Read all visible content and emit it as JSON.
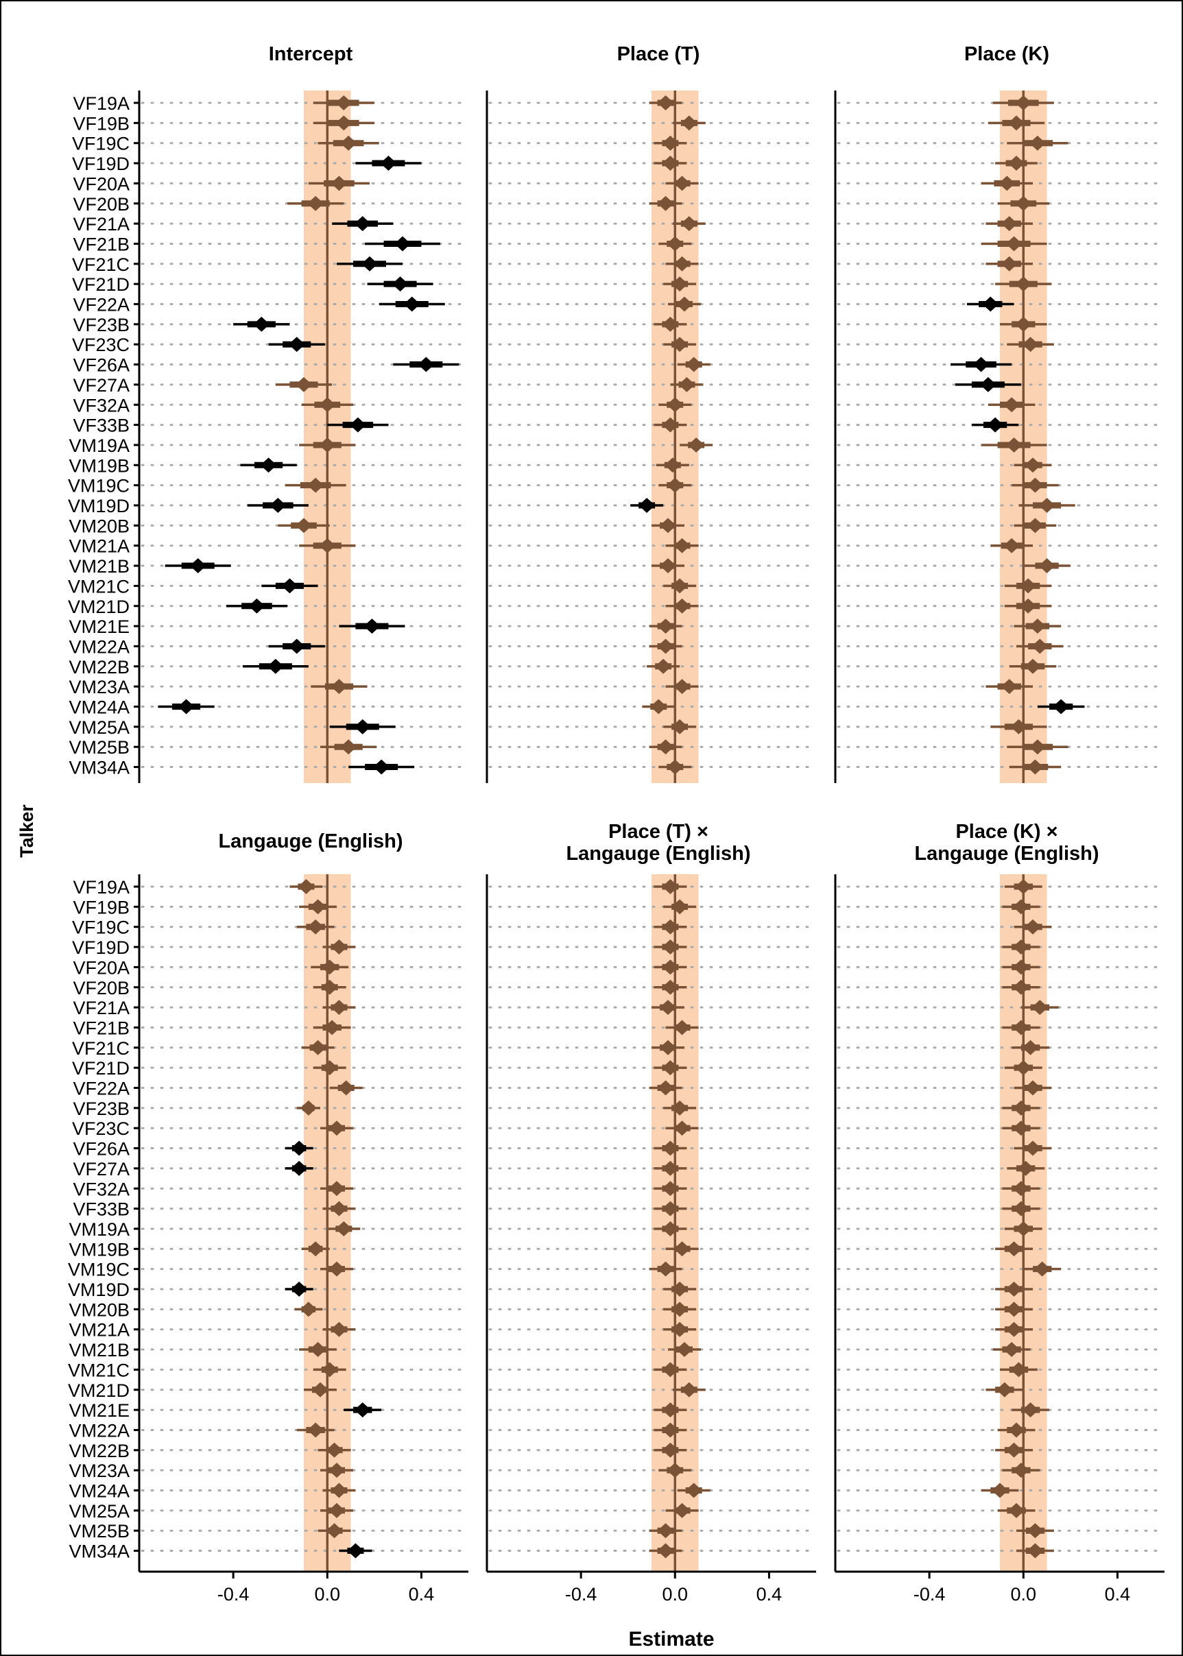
{
  "figure": {
    "ylabel": "Talker",
    "xlabel": "Estimate",
    "rope": [
      -0.1,
      0.1
    ],
    "xlim": [
      -0.8,
      0.6
    ],
    "x_ticks": [
      "-0.4",
      "0.0",
      "0.4"
    ],
    "colors": {
      "rope_band": "#fcd3b2",
      "zero_line": "#7a5236",
      "inside_rope": "#7a5236",
      "outside_rope": "#000000",
      "grid_dots": "#aaaaaa"
    }
  },
  "chart_data": {
    "type": "scatter",
    "subtype": "forest",
    "talkers": [
      "VF19A",
      "VF19B",
      "VF19C",
      "VF19D",
      "VF20A",
      "VF20B",
      "VF21A",
      "VF21B",
      "VF21C",
      "VF21D",
      "VF22A",
      "VF23B",
      "VF23C",
      "VF26A",
      "VF27A",
      "VF32A",
      "VF33B",
      "VM19A",
      "VM19B",
      "VM19C",
      "VM19D",
      "VM20B",
      "VM21A",
      "VM21B",
      "VM21C",
      "VM21D",
      "VM21E",
      "VM22A",
      "VM22B",
      "VM23A",
      "VM24A",
      "VM25A",
      "VM25B",
      "VM34A"
    ],
    "panels": [
      {
        "title_lines": [
          "Intercept"
        ],
        "axis_ticks_shown": false,
        "estimates": [
          0.07,
          0.07,
          0.09,
          0.26,
          0.05,
          -0.05,
          0.15,
          0.32,
          0.18,
          0.31,
          0.36,
          -0.28,
          -0.13,
          0.42,
          -0.1,
          0.0,
          0.13,
          0.0,
          -0.25,
          -0.05,
          -0.21,
          -0.1,
          0.0,
          -0.55,
          -0.16,
          -0.3,
          0.19,
          -0.13,
          -0.22,
          0.05,
          -0.6,
          0.15,
          0.09,
          0.23
        ],
        "half_widths": [
          0.13,
          0.13,
          0.13,
          0.14,
          0.13,
          0.12,
          0.13,
          0.16,
          0.14,
          0.14,
          0.14,
          0.12,
          0.12,
          0.14,
          0.12,
          0.11,
          0.13,
          0.12,
          0.12,
          0.13,
          0.13,
          0.11,
          0.12,
          0.14,
          0.12,
          0.13,
          0.14,
          0.12,
          0.14,
          0.12,
          0.12,
          0.14,
          0.12,
          0.14
        ]
      },
      {
        "title_lines": [
          "Place (T)"
        ],
        "axis_ticks_shown": false,
        "estimates": [
          -0.04,
          0.06,
          -0.02,
          -0.02,
          0.03,
          -0.04,
          0.06,
          0.0,
          0.03,
          0.02,
          0.04,
          -0.02,
          0.02,
          0.08,
          0.05,
          0.0,
          -0.02,
          0.09,
          -0.01,
          0.0,
          -0.12,
          -0.03,
          0.03,
          -0.03,
          0.02,
          0.03,
          -0.04,
          -0.04,
          -0.05,
          0.03,
          -0.07,
          0.02,
          -0.04,
          0.0
        ],
        "half_widths": [
          0.07,
          0.07,
          0.07,
          0.07,
          0.07,
          0.07,
          0.07,
          0.07,
          0.07,
          0.07,
          0.07,
          0.07,
          0.07,
          0.07,
          0.07,
          0.07,
          0.07,
          0.07,
          0.07,
          0.07,
          0.07,
          0.07,
          0.07,
          0.07,
          0.07,
          0.07,
          0.07,
          0.07,
          0.07,
          0.07,
          0.07,
          0.07,
          0.07,
          0.07
        ]
      },
      {
        "title_lines": [
          "Place (K)"
        ],
        "axis_ticks_shown": false,
        "estimates": [
          0.0,
          -0.03,
          0.06,
          -0.03,
          -0.07,
          0.0,
          -0.06,
          -0.04,
          -0.06,
          0.0,
          -0.14,
          0.0,
          0.03,
          -0.18,
          -0.15,
          -0.05,
          -0.12,
          -0.04,
          0.04,
          0.05,
          0.1,
          0.05,
          -0.05,
          0.1,
          0.02,
          0.02,
          0.06,
          0.07,
          0.04,
          -0.06,
          0.16,
          -0.02,
          0.06,
          0.05
        ],
        "half_widths": [
          0.13,
          0.12,
          0.13,
          0.09,
          0.11,
          0.11,
          0.1,
          0.14,
          0.1,
          0.12,
          0.1,
          0.1,
          0.1,
          0.13,
          0.14,
          0.1,
          0.1,
          0.14,
          0.08,
          0.1,
          0.12,
          0.09,
          0.09,
          0.1,
          0.1,
          0.1,
          0.1,
          0.1,
          0.1,
          0.1,
          0.1,
          0.12,
          0.13,
          0.11
        ]
      },
      {
        "title_lines": [
          "Langauge (English)"
        ],
        "axis_ticks_shown": true,
        "estimates": [
          -0.09,
          -0.04,
          -0.05,
          0.05,
          0.01,
          0.01,
          0.05,
          0.02,
          -0.04,
          0.01,
          0.08,
          -0.08,
          0.04,
          -0.12,
          -0.12,
          0.04,
          0.05,
          0.07,
          -0.05,
          0.04,
          -0.12,
          -0.08,
          0.05,
          -0.04,
          0.01,
          -0.03,
          0.15,
          -0.05,
          0.03,
          0.04,
          0.05,
          0.04,
          0.03,
          0.12
        ],
        "half_widths": [
          0.07,
          0.08,
          0.08,
          0.07,
          0.08,
          0.07,
          0.07,
          0.08,
          0.07,
          0.07,
          0.07,
          0.05,
          0.07,
          0.06,
          0.06,
          0.07,
          0.07,
          0.07,
          0.06,
          0.07,
          0.06,
          0.06,
          0.07,
          0.08,
          0.07,
          0.07,
          0.08,
          0.08,
          0.07,
          0.07,
          0.07,
          0.07,
          0.07,
          0.07
        ]
      },
      {
        "title_lines": [
          "Place (T) ×",
          "Langauge (English)"
        ],
        "axis_ticks_shown": true,
        "estimates": [
          -0.02,
          0.02,
          -0.02,
          -0.02,
          -0.02,
          -0.02,
          -0.03,
          0.03,
          -0.03,
          -0.02,
          -0.04,
          0.02,
          0.03,
          -0.02,
          -0.02,
          -0.02,
          -0.02,
          -0.02,
          0.03,
          -0.04,
          0.02,
          0.02,
          0.02,
          0.04,
          -0.02,
          0.06,
          -0.02,
          -0.02,
          -0.02,
          0.0,
          0.08,
          0.03,
          -0.04,
          -0.04
        ],
        "half_widths": [
          0.07,
          0.07,
          0.07,
          0.07,
          0.07,
          0.07,
          0.07,
          0.07,
          0.07,
          0.07,
          0.07,
          0.07,
          0.07,
          0.07,
          0.07,
          0.07,
          0.07,
          0.07,
          0.07,
          0.07,
          0.07,
          0.07,
          0.07,
          0.07,
          0.07,
          0.07,
          0.07,
          0.07,
          0.07,
          0.07,
          0.07,
          0.07,
          0.07,
          0.07
        ]
      },
      {
        "title_lines": [
          "Place (K) ×",
          "Langauge (English)"
        ],
        "axis_ticks_shown": true,
        "estimates": [
          0.0,
          -0.01,
          0.04,
          -0.01,
          -0.01,
          -0.01,
          0.07,
          -0.01,
          0.03,
          0.0,
          0.04,
          -0.01,
          -0.01,
          0.04,
          0.01,
          -0.01,
          -0.01,
          0.0,
          -0.04,
          0.08,
          -0.04,
          -0.04,
          -0.04,
          -0.05,
          -0.02,
          -0.08,
          0.03,
          -0.03,
          -0.04,
          -0.01,
          -0.1,
          -0.03,
          0.05,
          0.05
        ],
        "half_widths": [
          0.08,
          0.08,
          0.08,
          0.08,
          0.08,
          0.08,
          0.08,
          0.08,
          0.08,
          0.08,
          0.08,
          0.08,
          0.08,
          0.08,
          0.08,
          0.08,
          0.08,
          0.08,
          0.08,
          0.08,
          0.08,
          0.08,
          0.08,
          0.08,
          0.08,
          0.08,
          0.08,
          0.08,
          0.08,
          0.08,
          0.08,
          0.08,
          0.08,
          0.08
        ]
      }
    ]
  }
}
